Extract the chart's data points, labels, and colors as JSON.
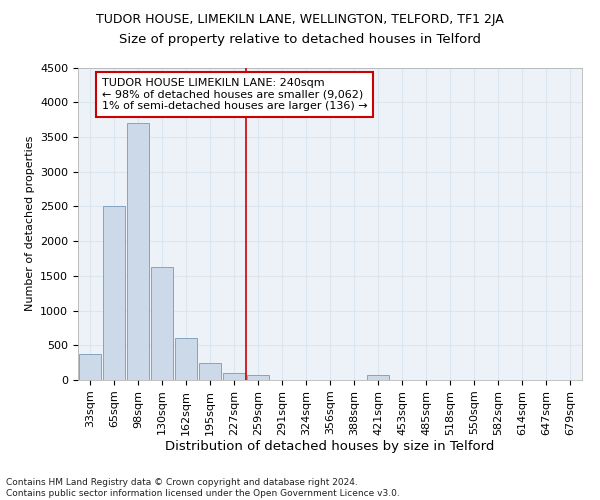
{
  "title1": "TUDOR HOUSE, LIMEKILN LANE, WELLINGTON, TELFORD, TF1 2JA",
  "title2": "Size of property relative to detached houses in Telford",
  "xlabel": "Distribution of detached houses by size in Telford",
  "ylabel": "Number of detached properties",
  "categories": [
    "33sqm",
    "65sqm",
    "98sqm",
    "130sqm",
    "162sqm",
    "195sqm",
    "227sqm",
    "259sqm",
    "291sqm",
    "324sqm",
    "356sqm",
    "388sqm",
    "421sqm",
    "453sqm",
    "485sqm",
    "518sqm",
    "550sqm",
    "582sqm",
    "614sqm",
    "647sqm",
    "679sqm"
  ],
  "values": [
    375,
    2500,
    3700,
    1625,
    600,
    250,
    100,
    75,
    0,
    0,
    0,
    0,
    75,
    0,
    0,
    0,
    0,
    0,
    0,
    0,
    0
  ],
  "bar_color": "#ccd9e8",
  "bar_edge_color": "#7799bb",
  "grid_color": "#dce6f0",
  "vline_x": 6.5,
  "vline_color": "#cc0000",
  "annotation_line1": "TUDOR HOUSE LIMEKILN LANE: 240sqm",
  "annotation_line2": "← 98% of detached houses are smaller (9,062)",
  "annotation_line3": "1% of semi-detached houses are larger (136) →",
  "annotation_box_edge_color": "#cc0000",
  "ylim": [
    0,
    4500
  ],
  "yticks": [
    0,
    500,
    1000,
    1500,
    2000,
    2500,
    3000,
    3500,
    4000,
    4500
  ],
  "footnote": "Contains HM Land Registry data © Crown copyright and database right 2024.\nContains public sector information licensed under the Open Government Licence v3.0.",
  "bg_color": "#edf2f8",
  "title1_fontsize": 9,
  "title2_fontsize": 9.5,
  "xlabel_fontsize": 9.5,
  "ylabel_fontsize": 8,
  "tick_fontsize": 8,
  "annot_fontsize": 8,
  "footnote_fontsize": 6.5
}
